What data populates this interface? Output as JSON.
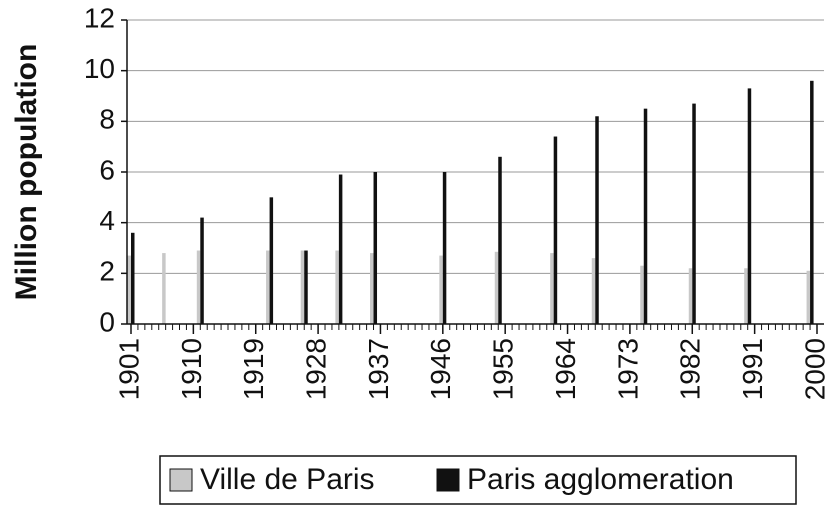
{
  "chart_data": {
    "type": "bar",
    "y_label": "Million population",
    "x": [
      1901,
      1906,
      1911,
      1921,
      1926,
      1931,
      1936,
      1946,
      1954,
      1962,
      1968,
      1975,
      1982,
      1990,
      1999
    ],
    "series": [
      {
        "name": "Ville de Paris",
        "color": "#c8c8c8",
        "values": [
          2.7,
          2.8,
          2.9,
          2.9,
          2.9,
          2.9,
          2.8,
          2.7,
          2.85,
          2.8,
          2.6,
          2.3,
          2.2,
          2.2,
          2.1
        ]
      },
      {
        "name": "Paris agglomeration",
        "color": "#111111",
        "values": [
          3.6,
          null,
          4.2,
          5.0,
          2.9,
          5.9,
          6.0,
          6.0,
          6.6,
          7.4,
          8.2,
          8.5,
          8.7,
          9.3,
          9.6
        ]
      }
    ],
    "xlim": [
      1901,
      2000
    ],
    "xticks": [
      1901,
      1910,
      1919,
      1928,
      1937,
      1946,
      1955,
      1964,
      1973,
      1982,
      1991,
      2000
    ],
    "ylim": [
      0,
      12
    ],
    "yticks": [
      0,
      2,
      4,
      6,
      8,
      10,
      12
    ],
    "grid": true,
    "legend": "bottom"
  }
}
